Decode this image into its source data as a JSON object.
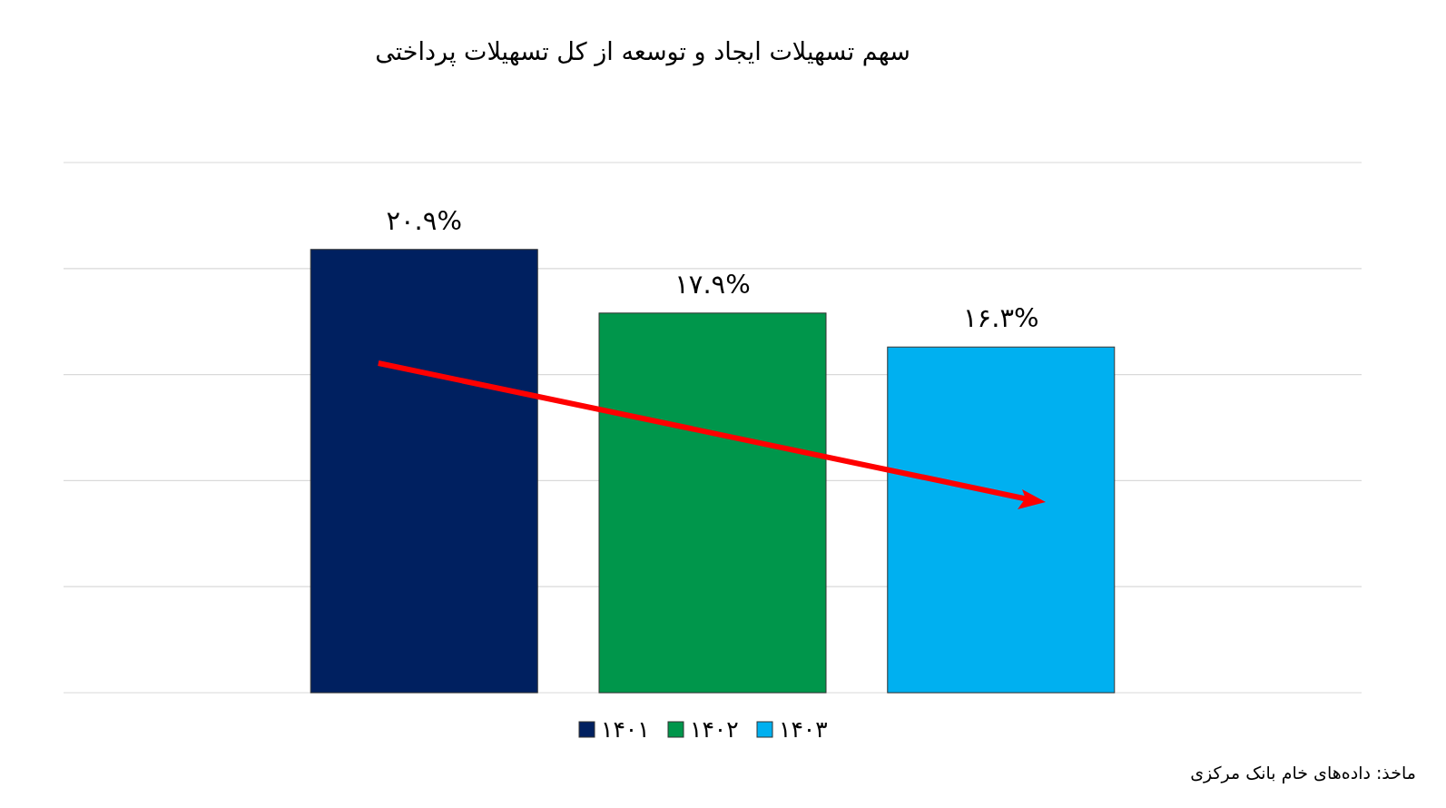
{
  "chart_data": {
    "type": "bar",
    "title": "سهم تسهیلات ایجاد و توسعه از کل تسهیلات پرداختی",
    "categories": [
      null
    ],
    "series": [
      {
        "name": "۱۴۰۱",
        "color": "#002060",
        "values": [
          20.9
        ],
        "value_labels": [
          "۲۰.۹%"
        ]
      },
      {
        "name": "۱۴۰۲",
        "color": "#00964b",
        "values": [
          17.9
        ],
        "value_labels": [
          "۱۷.۹%"
        ]
      },
      {
        "name": "۱۴۰۳",
        "color": "#00b0f0",
        "values": [
          16.3
        ],
        "value_labels": [
          "۱۶.۳%"
        ]
      }
    ],
    "ylim": [
      0,
      25
    ],
    "yticks": [
      {
        "value": 0,
        "label": null
      },
      {
        "value": 5,
        "label": null
      },
      {
        "value": 10,
        "label": null
      },
      {
        "value": 15,
        "label": null
      },
      {
        "value": 20,
        "label": null
      },
      {
        "value": 25,
        "label": null
      }
    ],
    "grid": "y",
    "legend": "bottom",
    "annotations": [
      "ماخذ: داده‌های خام بانک مرکزی"
    ]
  }
}
